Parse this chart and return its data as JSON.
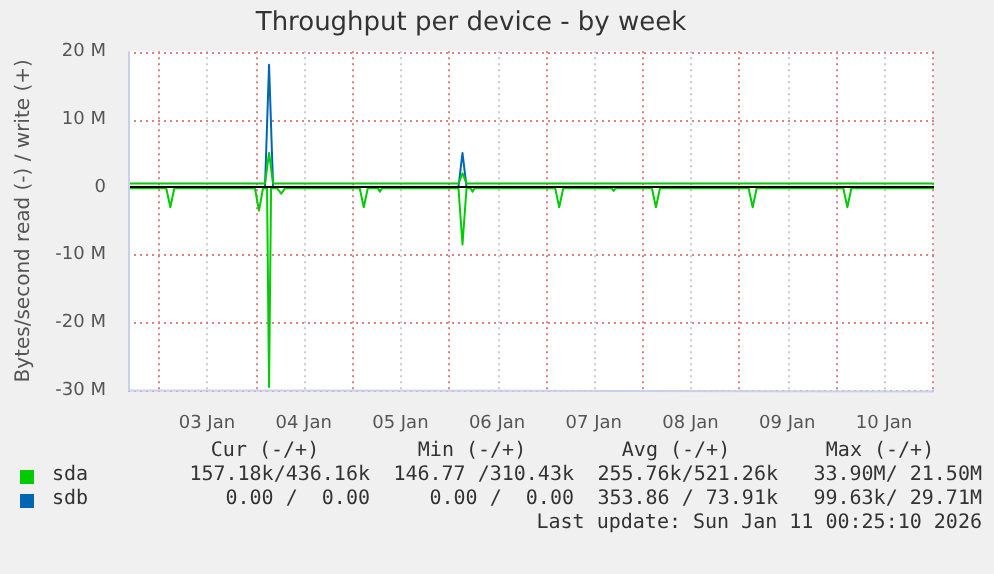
{
  "chart_data": {
    "type": "line",
    "title": "Throughput per device - by week",
    "ylabel": "Bytes/second read (-) / write (+)",
    "xlim": [
      "2026-01-02T16:25",
      "2026-01-11T00:25"
    ],
    "xticks": [
      {
        "value": "2026-01-03T00:00",
        "label": null
      },
      {
        "value": "2026-01-03T12:00",
        "label": "03 Jan"
      },
      {
        "value": "2026-01-04T00:00",
        "label": null
      },
      {
        "value": "2026-01-04T12:00",
        "label": "04 Jan"
      },
      {
        "value": "2026-01-05T00:00",
        "label": null
      },
      {
        "value": "2026-01-05T12:00",
        "label": "05 Jan"
      },
      {
        "value": "2026-01-06T00:00",
        "label": null
      },
      {
        "value": "2026-01-06T12:00",
        "label": "06 Jan"
      },
      {
        "value": "2026-01-07T00:00",
        "label": null
      },
      {
        "value": "2026-01-07T12:00",
        "label": "07 Jan"
      },
      {
        "value": "2026-01-08T00:00",
        "label": null
      },
      {
        "value": "2026-01-08T12:00",
        "label": "08 Jan"
      },
      {
        "value": "2026-01-09T00:00",
        "label": null
      },
      {
        "value": "2026-01-09T12:00",
        "label": "09 Jan"
      },
      {
        "value": "2026-01-10T00:00",
        "label": null
      },
      {
        "value": "2026-01-10T12:00",
        "label": "10 Jan"
      },
      {
        "value": "2026-01-11T00:00",
        "label": null
      }
    ],
    "ylim": [
      -30000000,
      20000000
    ],
    "yticks": [
      {
        "value": -30000000,
        "label": "-30 M"
      },
      {
        "value": -20000000,
        "label": "-20 M"
      },
      {
        "value": -10000000,
        "label": "-10 M"
      },
      {
        "value": 0,
        "label": "0"
      },
      {
        "value": 10000000,
        "label": "10 M"
      },
      {
        "value": 20000000,
        "label": "20 M"
      }
    ],
    "grid": true,
    "legend": "bottom",
    "marker": "none",
    "line_style": "solid",
    "ref_lines": [
      {
        "axis": "y",
        "value": 0,
        "color": "#000000"
      }
    ],
    "series": [
      {
        "name": "sda",
        "color": "#00cc00",
        "x": [
          "2026-01-02T16:25",
          "2026-01-04T02:25",
          "2026-01-04T03:25",
          "2026-01-04T04:25",
          "2026-01-06T02:25",
          "2026-01-06T03:25",
          "2026-01-06T04:25",
          "2026-01-11T00:25"
        ],
        "values": [
          500000,
          500000,
          5000000,
          500000,
          500000,
          2000000,
          500000,
          500000
        ]
      },
      {
        "color": "#00cc00",
        "x": [
          "2026-01-02T16:25",
          "2026-01-03T01:55",
          "2026-01-03T02:55",
          "2026-01-03T03:55",
          "2026-01-03T23:55",
          "2026-01-04T00:55",
          "2026-01-04T01:55",
          "2026-01-04T02:55",
          "2026-01-04T03:25",
          "2026-01-04T03:55",
          "2026-01-04T05:25",
          "2026-01-04T06:25",
          "2026-01-04T07:25",
          "2026-01-05T01:55",
          "2026-01-05T02:55",
          "2026-01-05T03:55",
          "2026-01-05T06:25",
          "2026-01-05T06:55",
          "2026-01-05T07:25",
          "2026-01-06T02:25",
          "2026-01-06T03:25",
          "2026-01-06T04:25",
          "2026-01-06T05:25",
          "2026-01-06T05:55",
          "2026-01-06T06:25",
          "2026-01-07T02:25",
          "2026-01-07T03:25",
          "2026-01-07T04:25",
          "2026-01-07T16:25",
          "2026-01-07T16:55",
          "2026-01-07T17:25",
          "2026-01-08T02:25",
          "2026-01-08T03:25",
          "2026-01-08T04:25",
          "2026-01-09T02:25",
          "2026-01-09T03:25",
          "2026-01-09T04:25",
          "2026-01-10T01:55",
          "2026-01-10T02:55",
          "2026-01-10T03:55",
          "2026-01-11T00:25"
        ],
        "values": [
          -200000,
          -200000,
          -3000000,
          -200000,
          -200000,
          -3500000,
          -200000,
          -200000,
          -29500000,
          -200000,
          -200000,
          -1000000,
          -200000,
          -200000,
          -3000000,
          -200000,
          -200000,
          -700000,
          -200000,
          -200000,
          -8500000,
          -200000,
          -200000,
          -700000,
          -200000,
          -200000,
          -3000000,
          -200000,
          -200000,
          -600000,
          -200000,
          -200000,
          -3000000,
          -200000,
          -200000,
          -3000000,
          -200000,
          -200000,
          -3000000,
          -200000,
          -200000
        ]
      },
      {
        "name": "sdb",
        "color": "#0066b3",
        "x": [
          "2026-01-04T02:25",
          "2026-01-04T03:25",
          "2026-01-04T04:25",
          "2026-01-05T04:25",
          "2026-01-06T02:25",
          "2026-01-06T03:25",
          "2026-01-06T04:25"
        ],
        "values": [
          0,
          18000000,
          0,
          null,
          0,
          5000000,
          0
        ]
      }
    ],
    "annotations": [
      "Cur (-/+)",
      "Min (-/+)",
      "Avg (-/+)",
      "Max (-/+)",
      "157.18k/436.16k",
      "146.77 /310.43k",
      "255.76k/521.26k",
      "33.90M/ 21.50M",
      "0.00 /  0.00",
      "0.00 /  0.00",
      "353.86 / 73.91k",
      "99.63k/ 29.71M",
      "Last update: Sun Jan 11 00:25:10 2026"
    ]
  }
}
